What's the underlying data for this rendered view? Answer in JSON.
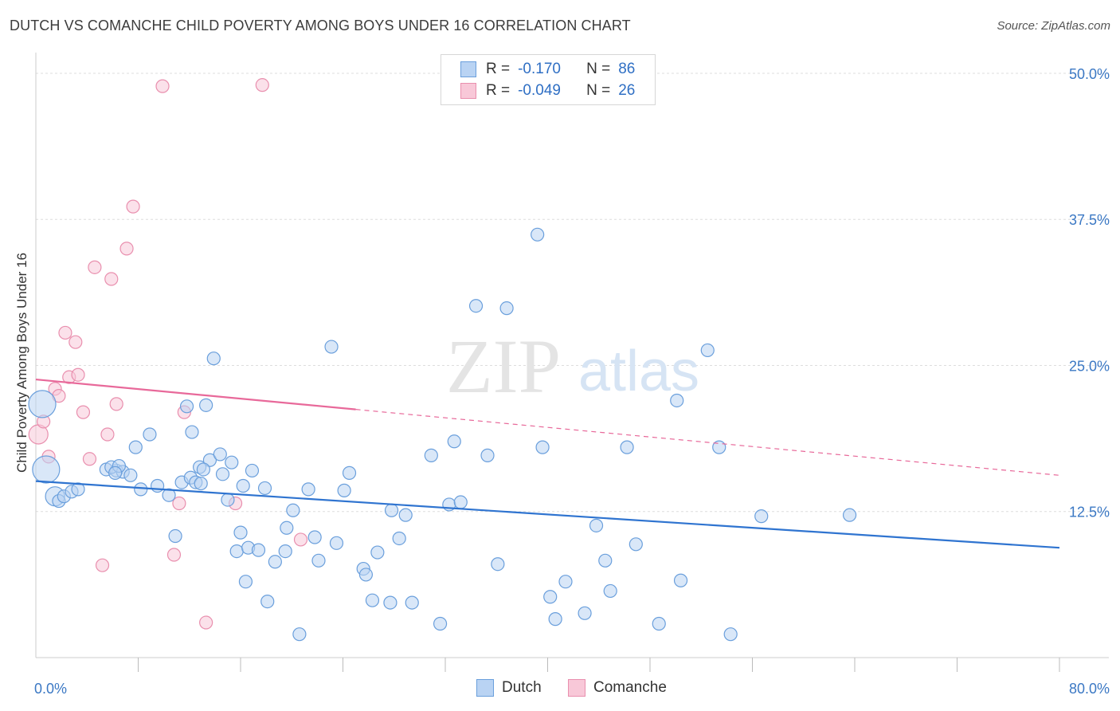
{
  "title": "DUTCH VS COMANCHE CHILD POVERTY AMONG BOYS UNDER 16 CORRELATION CHART",
  "source": "Source: ZipAtlas.com",
  "watermark": {
    "zip": "ZIP",
    "atlas": "atlas"
  },
  "legend": {
    "rows": [
      {
        "r_label": "R =",
        "r_value": "-0.170",
        "n_label": "N =",
        "n_value": "86"
      },
      {
        "r_label": "R =",
        "r_value": "-0.049",
        "n_label": "N =",
        "n_value": "26"
      }
    ]
  },
  "bottom_legend": {
    "dutch": "Dutch",
    "comanche": "Comanche"
  },
  "colors": {
    "dutch_fill": "#b9d3f3",
    "dutch_stroke": "#6a9fdc",
    "dutch_line": "#2f74d0",
    "comanche_fill": "#f8c8d8",
    "comanche_stroke": "#e98fae",
    "comanche_line": "#e8699a",
    "tick": "#3b78c4",
    "grid": "#dddddd"
  },
  "chart_data": {
    "type": "scatter",
    "title": "DUTCH VS COMANCHE CHILD POVERTY AMONG BOYS UNDER 16 CORRELATION CHART",
    "xlabel": "",
    "ylabel": "Child Poverty Among Boys Under 16",
    "xlim": [
      0,
      80
    ],
    "ylim": [
      0,
      51.5
    ],
    "x_tick_labels": [
      "0.0%",
      "80.0%"
    ],
    "y_ticks": [
      12.5,
      25.0,
      37.5,
      50.0
    ],
    "y_tick_labels": [
      "12.5%",
      "25.0%",
      "37.5%",
      "50.0%"
    ],
    "grid": "horizontal dashed",
    "legend_position": "top-center",
    "series": [
      {
        "name": "Dutch",
        "r": -0.17,
        "n": 86,
        "trend": {
          "x0": 0,
          "y0": 15.1,
          "x1": 80,
          "y1": 9.4,
          "solid_to": 80
        },
        "points": [
          [
            0.5,
            21.7,
            3
          ],
          [
            0.8,
            16.1,
            3
          ],
          [
            1.5,
            13.8,
            2
          ],
          [
            1.8,
            13.4,
            1
          ],
          [
            2.2,
            13.8,
            1
          ],
          [
            2.8,
            14.2,
            1
          ],
          [
            3.3,
            14.4,
            1
          ],
          [
            5.5,
            16.1,
            1
          ],
          [
            6.3,
            16.0,
            1
          ],
          [
            6.8,
            15.9,
            1
          ],
          [
            5.9,
            16.3,
            1
          ],
          [
            7.4,
            15.6,
            1
          ],
          [
            6.5,
            16.4,
            1
          ],
          [
            6.2,
            15.8,
            1
          ],
          [
            8.2,
            14.4,
            1
          ],
          [
            7.8,
            18.0,
            1
          ],
          [
            8.9,
            19.1,
            1
          ],
          [
            9.5,
            14.7,
            1
          ],
          [
            10.4,
            13.9,
            1
          ],
          [
            10.9,
            10.4,
            1
          ],
          [
            11.4,
            15.0,
            1
          ],
          [
            11.8,
            21.5,
            1
          ],
          [
            12.2,
            19.3,
            1
          ],
          [
            12.8,
            16.3,
            1
          ],
          [
            13.6,
            16.9,
            1
          ],
          [
            13.3,
            21.6,
            1
          ],
          [
            12.1,
            15.4,
            1
          ],
          [
            12.5,
            15.0,
            1
          ],
          [
            12.9,
            14.9,
            1
          ],
          [
            13.1,
            16.1,
            1
          ],
          [
            13.9,
            25.6,
            1
          ],
          [
            14.4,
            17.4,
            1
          ],
          [
            14.6,
            15.7,
            1
          ],
          [
            15.0,
            13.5,
            1
          ],
          [
            15.3,
            16.7,
            1
          ],
          [
            16.2,
            14.7,
            1
          ],
          [
            15.7,
            9.1,
            1
          ],
          [
            16.0,
            10.7,
            1
          ],
          [
            16.6,
            9.4,
            1
          ],
          [
            16.4,
            6.5,
            1
          ],
          [
            16.9,
            16.0,
            1
          ],
          [
            17.4,
            9.2,
            1
          ],
          [
            17.9,
            14.5,
            1
          ],
          [
            18.1,
            4.8,
            1
          ],
          [
            18.7,
            8.2,
            1
          ],
          [
            19.5,
            9.1,
            1
          ],
          [
            19.6,
            11.1,
            1
          ],
          [
            20.1,
            12.6,
            1
          ],
          [
            20.6,
            2.0,
            1
          ],
          [
            21.3,
            14.4,
            1
          ],
          [
            21.8,
            10.3,
            1
          ],
          [
            22.1,
            8.3,
            1
          ],
          [
            23.1,
            26.6,
            1
          ],
          [
            23.5,
            9.8,
            1
          ],
          [
            24.1,
            14.3,
            1
          ],
          [
            24.5,
            15.8,
            1
          ],
          [
            25.6,
            7.6,
            1
          ],
          [
            25.8,
            7.1,
            1
          ],
          [
            26.3,
            4.9,
            1
          ],
          [
            26.7,
            9.0,
            1
          ],
          [
            27.7,
            4.7,
            1
          ],
          [
            27.8,
            12.6,
            1
          ],
          [
            28.4,
            10.2,
            1
          ],
          [
            28.9,
            12.2,
            1
          ],
          [
            29.4,
            4.7,
            1
          ],
          [
            30.9,
            17.3,
            1
          ],
          [
            31.6,
            2.9,
            1
          ],
          [
            32.3,
            13.1,
            1
          ],
          [
            32.7,
            18.5,
            1
          ],
          [
            33.2,
            13.3,
            1
          ],
          [
            34.4,
            30.1,
            1
          ],
          [
            35.3,
            17.3,
            1
          ],
          [
            36.1,
            8.0,
            1
          ],
          [
            36.8,
            29.9,
            1
          ],
          [
            39.2,
            36.2,
            1
          ],
          [
            39.6,
            18.0,
            1
          ],
          [
            40.2,
            5.2,
            1
          ],
          [
            40.6,
            3.3,
            1
          ],
          [
            41.4,
            6.5,
            1
          ],
          [
            42.9,
            3.8,
            1
          ],
          [
            43.8,
            11.3,
            1
          ],
          [
            44.5,
            8.3,
            1
          ],
          [
            44.9,
            5.7,
            1
          ],
          [
            46.2,
            18.0,
            1
          ],
          [
            46.9,
            9.7,
            1
          ],
          [
            48.7,
            2.9,
            1
          ],
          [
            50.4,
            6.6,
            1
          ],
          [
            50.1,
            22.0,
            1
          ],
          [
            53.4,
            18.0,
            1
          ],
          [
            54.3,
            2.0,
            1
          ],
          [
            56.7,
            12.1,
            1
          ],
          [
            63.6,
            12.2,
            1
          ],
          [
            52.5,
            26.3,
            1
          ]
        ]
      },
      {
        "name": "Comanche",
        "r": -0.049,
        "n": 26,
        "trend": {
          "x0": 0,
          "y0": 23.8,
          "x1": 80,
          "y1": 15.6,
          "solid_to": 25.0
        },
        "points": [
          [
            0.2,
            19.1,
            2
          ],
          [
            0.6,
            20.2,
            1
          ],
          [
            1.0,
            17.2,
            1
          ],
          [
            1.5,
            23.0,
            1
          ],
          [
            1.8,
            22.4,
            1
          ],
          [
            2.3,
            27.8,
            1
          ],
          [
            2.6,
            24.0,
            1
          ],
          [
            3.1,
            27.0,
            1
          ],
          [
            3.3,
            24.2,
            1
          ],
          [
            3.7,
            21.0,
            1
          ],
          [
            4.2,
            17.0,
            1
          ],
          [
            4.6,
            33.4,
            1
          ],
          [
            5.2,
            7.9,
            1
          ],
          [
            5.6,
            19.1,
            1
          ],
          [
            5.9,
            32.4,
            1
          ],
          [
            6.3,
            21.7,
            1
          ],
          [
            7.1,
            35.0,
            1
          ],
          [
            7.6,
            38.6,
            1
          ],
          [
            9.9,
            48.9,
            1
          ],
          [
            10.8,
            8.8,
            1
          ],
          [
            11.2,
            13.2,
            1
          ],
          [
            11.6,
            21.0,
            1
          ],
          [
            13.3,
            3.0,
            1
          ],
          [
            15.6,
            13.2,
            1
          ],
          [
            17.7,
            49.0,
            1
          ],
          [
            20.7,
            10.1,
            1
          ]
        ]
      }
    ]
  }
}
